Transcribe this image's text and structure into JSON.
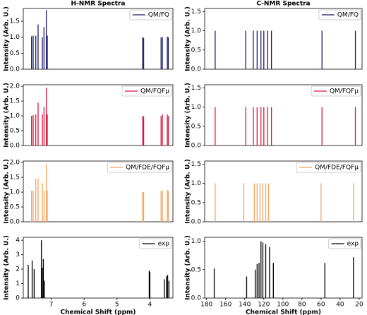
{
  "chart_data": [
    {
      "type": "stick",
      "title": "H-NMR Spectra",
      "ylabel": "Intensity (Arb. U.)",
      "xlim": [
        7.85,
        3.3
      ],
      "ylim": [
        0,
        1.9
      ],
      "yticks": [
        {
          "value": 0,
          "label": "0.0"
        },
        {
          "value": 0.5,
          "label": "0.5"
        },
        {
          "value": 1,
          "label": "1.0"
        },
        {
          "value": 1.5,
          "label": "1.5"
        }
      ],
      "legend": "upper right",
      "series": [
        {
          "name": "QM/FQ",
          "color": "#191970",
          "x": [
            7.6,
            7.55,
            7.47,
            7.4,
            7.27,
            7.22,
            7.15,
            7.12,
            4.22,
            4.19,
            3.66,
            3.62,
            3.47,
            3.44
          ],
          "values": [
            1.03,
            1.05,
            1.05,
            1.4,
            1.0,
            1.32,
            1.85,
            1.05,
            1.0,
            0.98,
            1.0,
            1.0,
            1.02,
            1.0
          ]
        }
      ]
    },
    {
      "type": "stick",
      "ylabel": "Intensity (Arb. U.)",
      "xlim": [
        7.85,
        3.3
      ],
      "ylim": [
        0,
        2.05
      ],
      "yticks": [
        {
          "value": 0,
          "label": "0.0"
        },
        {
          "value": 0.5,
          "label": "0.5"
        },
        {
          "value": 1,
          "label": "1.0"
        },
        {
          "value": 1.5,
          "label": "1.5"
        },
        {
          "value": 2,
          "label": "2.0"
        }
      ],
      "legend": "upper right",
      "series": [
        {
          "name": "QM/FQFμ",
          "color": "#dc143c",
          "x": [
            7.6,
            7.55,
            7.47,
            7.4,
            7.27,
            7.22,
            7.15,
            7.12,
            4.22,
            4.19,
            3.66,
            3.62,
            3.47,
            3.44
          ],
          "values": [
            1.0,
            1.03,
            1.05,
            1.45,
            1.05,
            1.3,
            1.95,
            1.05,
            1.0,
            0.98,
            1.0,
            1.05,
            1.05,
            1.0
          ]
        }
      ]
    },
    {
      "type": "stick",
      "ylabel": "Intensity (Arb. U.)",
      "xlim": [
        7.85,
        3.3
      ],
      "ylim": [
        0,
        2.05
      ],
      "yticks": [
        {
          "value": 0,
          "label": "0.0"
        },
        {
          "value": 0.5,
          "label": "0.5"
        },
        {
          "value": 1,
          "label": "1.0"
        },
        {
          "value": 1.5,
          "label": "1.5"
        },
        {
          "value": 2,
          "label": "2.0"
        }
      ],
      "legend": "upper right",
      "series": [
        {
          "name": "QM/FDE/FQFμ",
          "color": "#f4a460",
          "x": [
            7.6,
            7.55,
            7.47,
            7.4,
            7.27,
            7.22,
            7.15,
            7.12,
            4.22,
            4.19,
            3.66,
            3.62,
            3.47,
            3.44
          ],
          "values": [
            1.05,
            1.05,
            1.45,
            1.45,
            1.3,
            1.05,
            1.95,
            1.05,
            1.0,
            1.0,
            1.05,
            1.05,
            1.08,
            1.05
          ]
        }
      ]
    },
    {
      "type": "stick",
      "ylabel": "Intensity (Arb. U.)",
      "xlabel": "Chemical Shift (ppm)",
      "xlim": [
        7.85,
        3.3
      ],
      "ylim": [
        0,
        4.2
      ],
      "xticks": [
        7,
        6,
        5,
        4
      ],
      "yticks": [
        0,
        1,
        2,
        3,
        4
      ],
      "legend": "upper right",
      "series": [
        {
          "name": "exp",
          "color": "#000000",
          "x": [
            7.7,
            7.58,
            7.52,
            7.3,
            7.27,
            7.24,
            7.21,
            4.02,
            4.0,
            3.56,
            3.5,
            3.46,
            3.42
          ],
          "values": [
            2.3,
            2.6,
            2.0,
            4.0,
            2.1,
            2.7,
            1.2,
            1.9,
            1.8,
            1.3,
            1.5,
            1.6,
            1.2
          ]
        }
      ]
    },
    {
      "type": "stick",
      "title": "C-NMR Spectra",
      "ylabel": "Intensity (Arb. U.)",
      "xlim": [
        182,
        17
      ],
      "ylim": [
        0,
        1.58
      ],
      "yticks": [
        {
          "value": 0,
          "label": "0.0"
        },
        {
          "value": 0.5,
          "label": "0.5"
        },
        {
          "value": 1,
          "label": "1.0"
        },
        {
          "value": 1.5,
          "label": "1.5"
        }
      ],
      "legend": "upper right",
      "series": [
        {
          "name": "QM/FQ",
          "color": "#191970",
          "x": [
            171,
            139,
            131,
            127,
            123,
            120,
            116,
            112,
            59,
            24
          ],
          "values": [
            1,
            1,
            1,
            1,
            1,
            1,
            1,
            1,
            1,
            1
          ]
        }
      ]
    },
    {
      "type": "stick",
      "ylabel": "Intensity (Arb. U.)",
      "xlim": [
        182,
        17
      ],
      "ylim": [
        0,
        1.58
      ],
      "yticks": [
        {
          "value": 0,
          "label": "0.0"
        },
        {
          "value": 0.5,
          "label": "0.5"
        },
        {
          "value": 1,
          "label": "1.0"
        },
        {
          "value": 1.5,
          "label": "1.5"
        }
      ],
      "legend": "upper right",
      "series": [
        {
          "name": "QM/FQFμ",
          "color": "#dc143c",
          "x": [
            171,
            139,
            131,
            127,
            123,
            120,
            116,
            112,
            59,
            24
          ],
          "values": [
            1,
            1,
            1,
            1,
            1,
            1,
            1,
            1,
            1,
            1
          ]
        }
      ]
    },
    {
      "type": "stick",
      "ylabel": "Intensity (Arb. U.)",
      "xlim": [
        182,
        17
      ],
      "ylim": [
        0,
        1.58
      ],
      "yticks": [
        {
          "value": 0,
          "label": "0.0"
        },
        {
          "value": 0.5,
          "label": "0.5"
        },
        {
          "value": 1,
          "label": "1.0"
        },
        {
          "value": 1.5,
          "label": "1.5"
        }
      ],
      "legend": "upper right",
      "series": [
        {
          "name": "QM/FDE/FQFμ",
          "color": "#f4a460",
          "x": [
            171,
            141,
            130,
            127,
            124,
            121,
            118,
            115,
            60,
            26
          ],
          "values": [
            1,
            1,
            1,
            1,
            1,
            1,
            1,
            1,
            1,
            1
          ]
        }
      ]
    },
    {
      "type": "stick",
      "ylabel": "Intensity (Arb. U.)",
      "xlabel": "Chemical Shift (ppm)",
      "xlim": [
        182,
        17
      ],
      "ylim": [
        0,
        1.07
      ],
      "xticks": [
        180,
        160,
        140,
        120,
        100,
        80,
        60,
        40,
        20
      ],
      "yticks": [
        {
          "value": 0,
          "label": "0.0"
        },
        {
          "value": 0.5,
          "label": "0.5"
        },
        {
          "value": 1,
          "label": "1.0"
        }
      ],
      "legend": "upper right",
      "series": [
        {
          "name": "exp",
          "color": "#000000",
          "x": [
            172,
            138,
            129,
            127,
            125,
            123,
            121,
            118,
            114,
            110,
            56,
            26
          ],
          "values": [
            0.52,
            0.38,
            0.5,
            0.6,
            0.62,
            1.0,
            0.98,
            0.95,
            0.9,
            0.62,
            0.62,
            0.72
          ]
        }
      ]
    }
  ]
}
